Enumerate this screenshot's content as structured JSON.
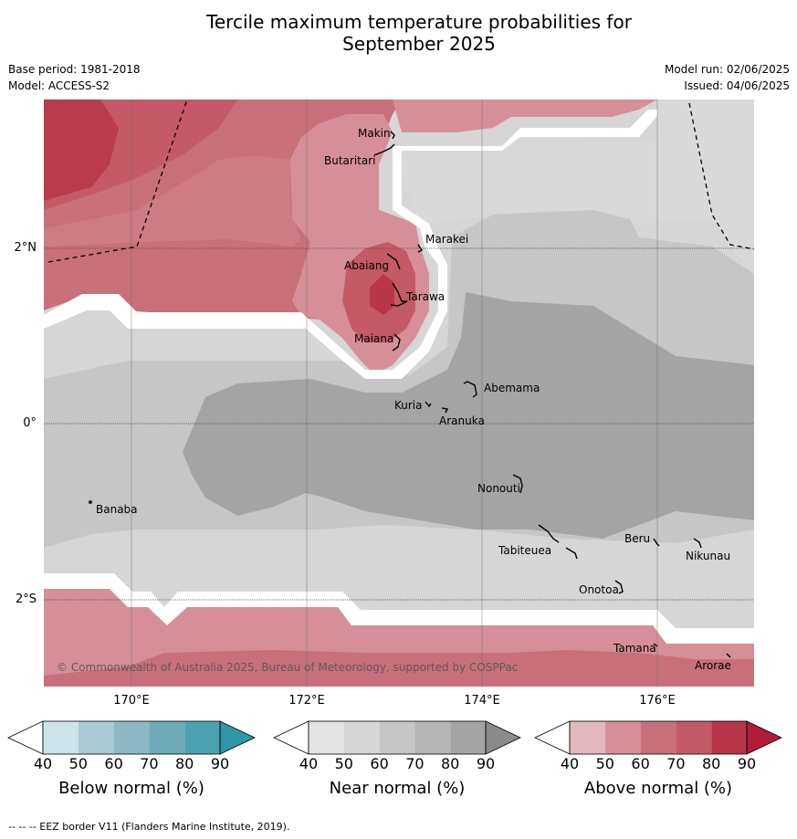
{
  "title_line1": "Tercile maximum temperature probabilities for",
  "title_line2": "September 2025",
  "base_period": "Base period: 1981-2018",
  "model": "Model: ACCESS-S2",
  "model_run": "Model run: 02/06/2025",
  "issued": "Issued: 04/06/2025",
  "latitude_labels": [
    "2°N",
    "0°",
    "2°S"
  ],
  "longitude_labels": [
    "170°E",
    "172°E",
    "174°E",
    "176°E"
  ],
  "places": [
    "Makin",
    "Butaritari",
    "Marakei",
    "Abaiang",
    "Tarawa",
    "Maiana",
    "Abemama",
    "Kuria",
    "Aranuka",
    "Nonouti",
    "Banaba",
    "Beru",
    "Tabiteuea",
    "Nikunau",
    "Onotoa",
    "Tamana",
    "Arorae"
  ],
  "copyright": "© Commonwealth of Australia 2025, Bureau of Meteorology, supported by COSPPac",
  "colorbars": [
    {
      "label": "Below normal (%)",
      "ticks": [
        "40",
        "50",
        "60",
        "70",
        "80",
        "90"
      ],
      "colors": [
        "#ffffff",
        "#cde3ea",
        "#a9cbd3",
        "#8cb8c4",
        "#6eaab9",
        "#4ba1b2",
        "#3196a8"
      ]
    },
    {
      "label": "Near normal (%)",
      "ticks": [
        "40",
        "50",
        "60",
        "70",
        "80",
        "90"
      ],
      "colors": [
        "#ffffff",
        "#e4e4e4",
        "#d6d6d6",
        "#c6c6c6",
        "#b4b4b4",
        "#a4a4a4",
        "#8a8a8a"
      ]
    },
    {
      "label": "Above normal (%)",
      "ticks": [
        "40",
        "50",
        "60",
        "70",
        "80",
        "90"
      ],
      "colors": [
        "#ffffff",
        "#e3b8bf",
        "#d68f98",
        "#c8707a",
        "#c45a67",
        "#b8354a",
        "#b01c3a"
      ]
    }
  ],
  "footer": "--  --  -- EEZ border V11 (Flanders Marine Institute, 2019)."
}
